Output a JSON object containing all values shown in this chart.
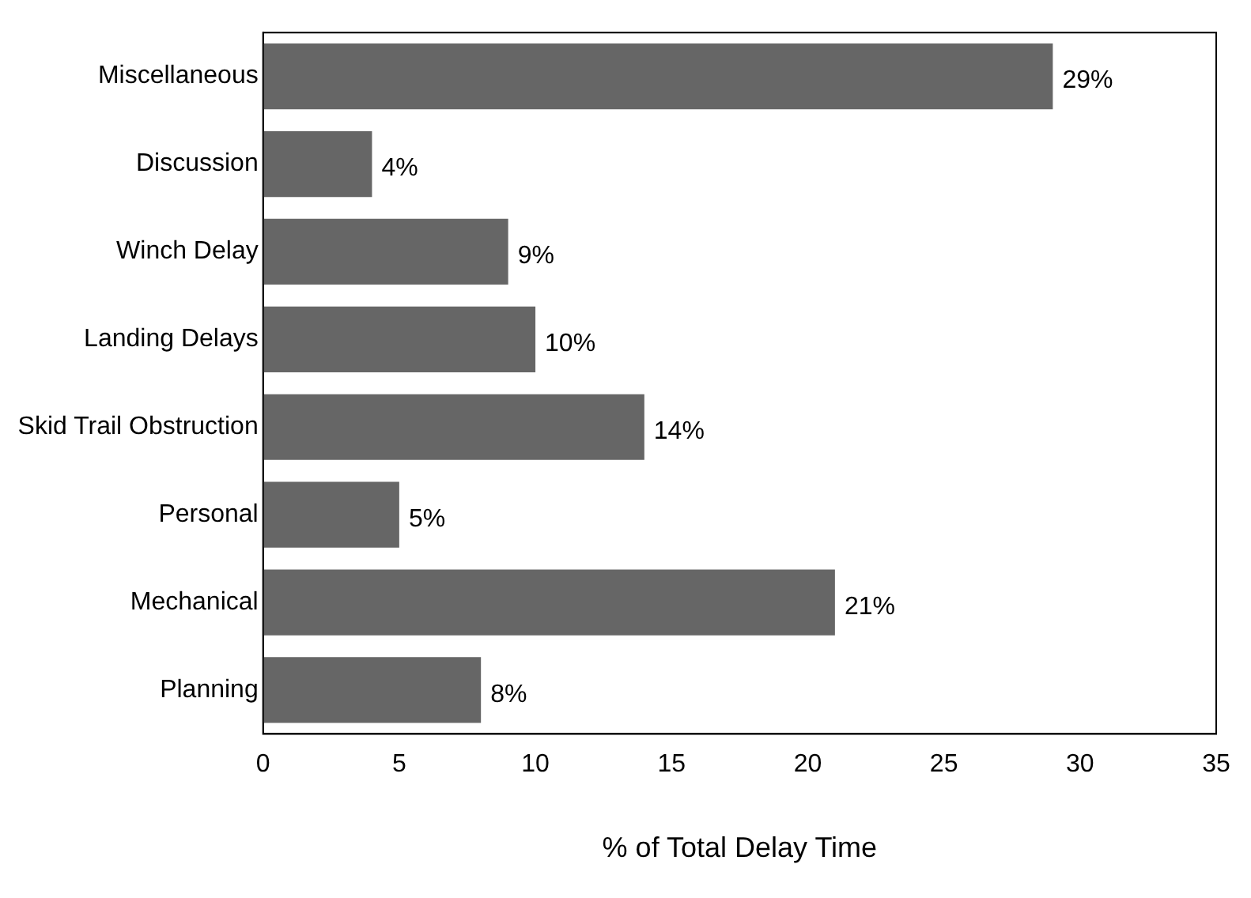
{
  "chart_data": {
    "type": "bar",
    "orientation": "horizontal",
    "xlabel": "% of Total Delay Time",
    "categories": [
      "Miscellaneous",
      "Discussion",
      "Winch Delay",
      "Landing Delays",
      "Skid Trail Obstruction",
      "Personal",
      "Mechanical",
      "Planning"
    ],
    "values": [
      29,
      4,
      9,
      10,
      14,
      5,
      21,
      8
    ],
    "value_labels": [
      "29%",
      "4%",
      "9%",
      "10%",
      "14%",
      "5%",
      "21%",
      "8%"
    ],
    "color": "#666666",
    "xlim": [
      0,
      35
    ],
    "xticks": [
      0,
      5,
      10,
      15,
      20,
      25,
      30,
      35
    ],
    "grid": false,
    "legend": false
  }
}
